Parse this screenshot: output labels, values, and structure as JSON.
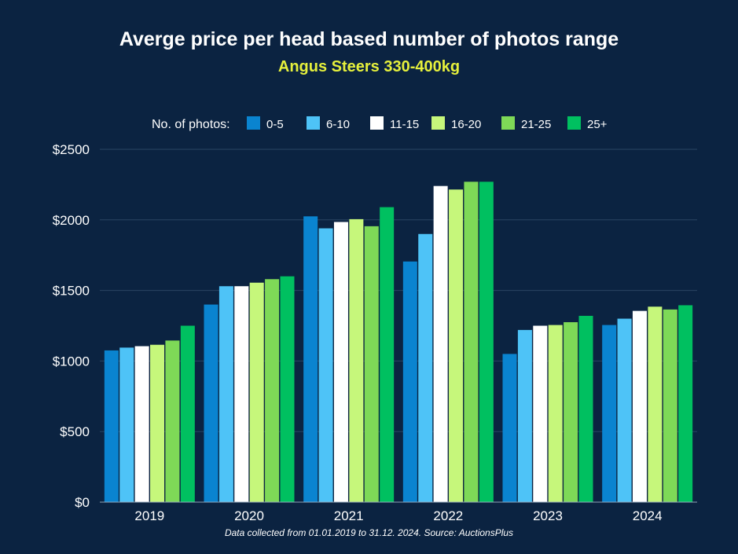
{
  "chart_data": {
    "type": "bar",
    "title": "Averge price per head based number of photos range",
    "subtitle": "Angus Steers 330-400kg",
    "legend_title": "No. of photos:",
    "legend_position": "top",
    "categories": [
      "2019",
      "2020",
      "2021",
      "2022",
      "2023",
      "2024"
    ],
    "series": [
      {
        "name": "0-5",
        "color": "#0a84d0",
        "values": [
          1075,
          1400,
          2025,
          1705,
          1050,
          1255
        ]
      },
      {
        "name": "6-10",
        "color": "#4ec3f7",
        "values": [
          1095,
          1530,
          1940,
          1900,
          1220,
          1300
        ]
      },
      {
        "name": "11-15",
        "color": "#ffffff",
        "values": [
          1105,
          1530,
          1985,
          2240,
          1250,
          1355
        ]
      },
      {
        "name": "16-20",
        "color": "#c6f77b",
        "values": [
          1115,
          1555,
          2005,
          2215,
          1255,
          1385
        ]
      },
      {
        "name": "21-25",
        "color": "#7ed957",
        "values": [
          1145,
          1580,
          1955,
          2270,
          1275,
          1365
        ]
      },
      {
        "name": "25+",
        "color": "#00c060",
        "values": [
          1250,
          1600,
          2090,
          2270,
          1320,
          1395
        ]
      }
    ],
    "yticks": [
      "$0",
      "$500",
      "$1000",
      "$1500",
      "$2000",
      "$2500"
    ],
    "ylim": [
      0,
      2500
    ],
    "grid": true
  },
  "footer": {
    "note": "Data collected from 01.01.2019 to 31.12. 2024. Source: AuctionsPlus"
  },
  "colors": {
    "background": "#0b2341",
    "title": "#ffffff",
    "subtitle": "#e6f03c",
    "grid": "#2a4563"
  }
}
